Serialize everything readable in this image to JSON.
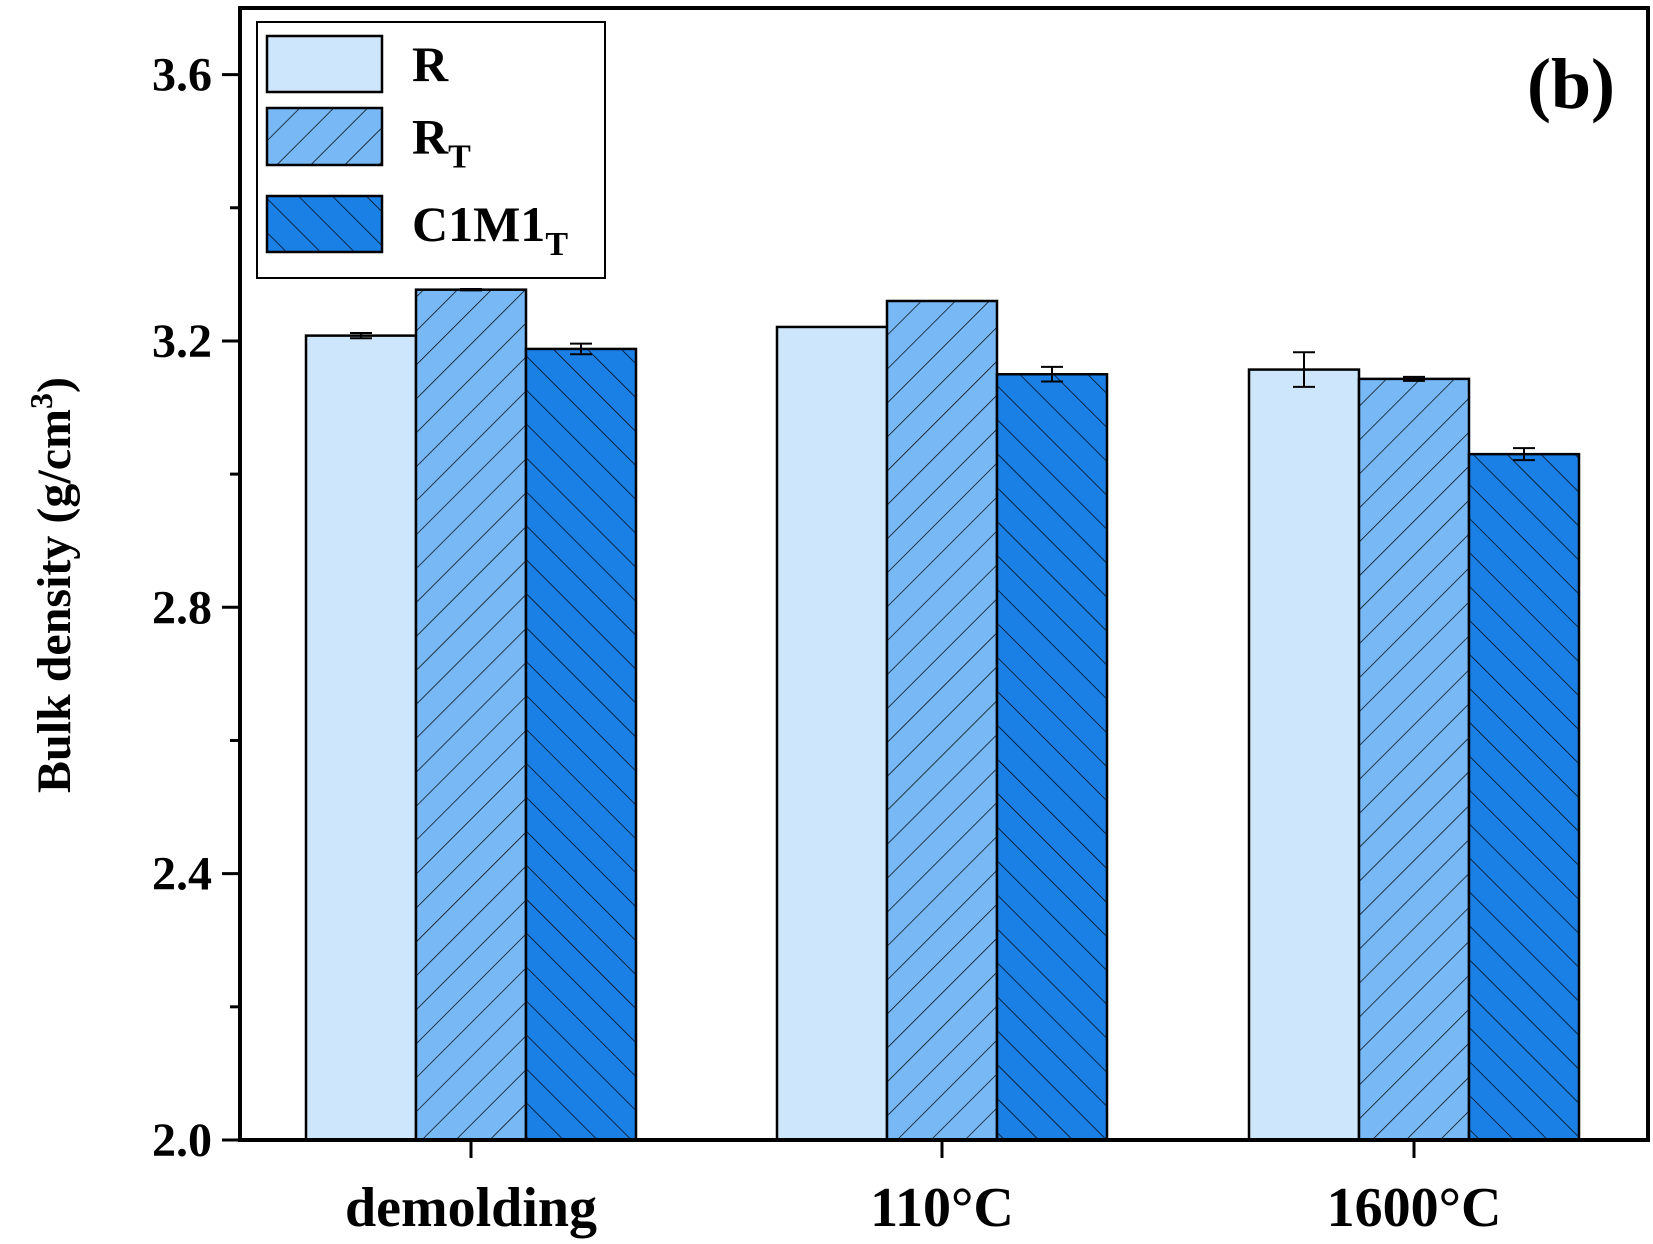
{
  "chart_data": {
    "type": "bar",
    "panel_label": "(b)",
    "ylabel": "Bulk density (g/cm",
    "ylabel_sup": "3",
    "ylabel_close": ")",
    "ylim": [
      2.0,
      3.7
    ],
    "yticks": [
      "2.0",
      "2.4",
      "2.8",
      "3.2",
      "3.6"
    ],
    "ytick_values": [
      2.0,
      2.4,
      2.8,
      3.2,
      3.6
    ],
    "categories": [
      "demolding",
      "110°C",
      "1600°C"
    ],
    "series": [
      {
        "name": "R",
        "name_sub": "",
        "values": [
          3.208,
          3.221,
          3.157
        ],
        "errors": [
          0.004,
          0.0,
          0.026
        ],
        "color": "#cde6fb",
        "pattern": "none"
      },
      {
        "name": "R",
        "name_sub": "T",
        "values": [
          3.277,
          3.26,
          3.143
        ],
        "errors": [
          0.001,
          0.0,
          0.003
        ],
        "color": "#77b8f5",
        "pattern": "forward-hatch"
      },
      {
        "name": "C1M1",
        "name_sub": "T",
        "values": [
          3.188,
          3.15,
          3.03
        ],
        "errors": [
          0.008,
          0.011,
          0.009
        ],
        "color": "#1a80e6",
        "pattern": "back-hatch"
      }
    ],
    "legend_position": "top-left",
    "grid": false
  }
}
